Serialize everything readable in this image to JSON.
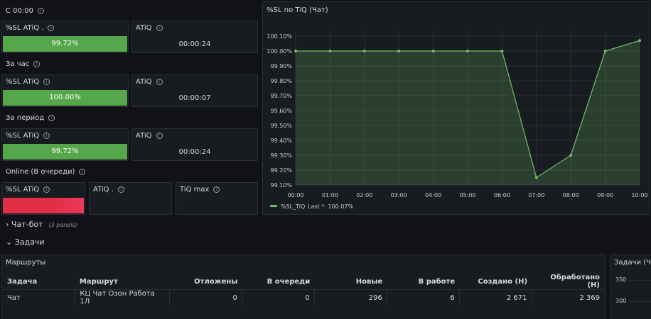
{
  "sections": {
    "since_midnight": "С 00:00",
    "per_hour": "За час",
    "per_period": "За период",
    "online": "Online (В очереди)"
  },
  "stats": {
    "row1": {
      "sl_title": "%SL ATiQ .",
      "sl_value": "99.72%",
      "sl_fill": 1.0,
      "atiq_title": "ATiQ",
      "atiq_value": "00:00:24"
    },
    "row2": {
      "sl_title": "%SL ATiQ",
      "sl_value": "100.00%",
      "sl_fill": 1.0,
      "atiq_title": "ATiQ",
      "atiq_value": "00:00:07"
    },
    "row3": {
      "sl_title": "%SL ATiQ",
      "sl_value": "99.72%",
      "sl_fill": 1.0,
      "atiq_title": "ATiQ",
      "atiq_value": "00:00:24"
    },
    "online": {
      "sl_title": "%SL ATiQ",
      "atiq_title": "ATiQ .",
      "tiq_max_title": "TiQ max"
    }
  },
  "chart_panel": {
    "title": "%SL по TiQ (Чат)"
  },
  "chart_data": {
    "type": "area",
    "x": [
      "00:00",
      "01:00",
      "02:00",
      "03:00",
      "04:00",
      "05:00",
      "06:00",
      "07:00",
      "08:00",
      "09:00",
      "10:00"
    ],
    "series": [
      {
        "name": "%SL_TiQ",
        "values": [
          100.0,
          100.0,
          100.0,
          100.0,
          100.0,
          100.0,
          100.0,
          99.15,
          99.3,
          100.0,
          100.07
        ]
      }
    ],
    "y_ticks": [
      "100.10%",
      "100.00%",
      "99.90%",
      "99.80%",
      "99.70%",
      "99.60%",
      "99.50%",
      "99.40%",
      "99.30%",
      "99.20%",
      "99.10%"
    ],
    "ylim": [
      99.1,
      100.1
    ],
    "legend": {
      "label": "%SL_TiQ",
      "last_label": "Last *: 100.07%",
      "placement": "bottom-left"
    },
    "grid": true,
    "color": "#73bf69"
  },
  "rows": {
    "chatbot": {
      "label": "Чат-бот",
      "sub": "(3 panels)"
    },
    "tasks": {
      "label": "Задачи"
    }
  },
  "routes_panel": {
    "title": "Маршруты",
    "headers": [
      "Задача",
      "Маршрут",
      "Отложены",
      "В очереди",
      "Новые",
      "В работе",
      "Создано (Н)",
      "Обработано (Н)"
    ],
    "rows": [
      [
        "Чат",
        "КЦ Чат Озон Работа 1Л",
        "0",
        "0",
        "296",
        "6",
        "2 671",
        "2 369"
      ]
    ]
  },
  "tasks_panel": {
    "title": "Задачи (Ча",
    "y_ticks": [
      "350",
      "300"
    ]
  },
  "colors": {
    "green": "#56a64b",
    "red": "#e02f44",
    "panel_bg": "#181b1f",
    "page_bg": "#111217"
  }
}
